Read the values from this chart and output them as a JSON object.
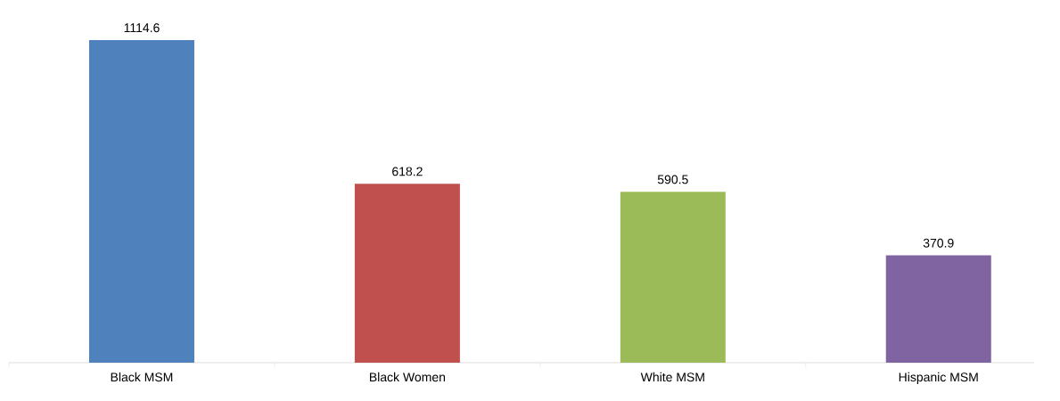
{
  "chart_data": {
    "type": "bar",
    "categories": [
      "Black MSM",
      "Black Women",
      "White MSM",
      "Hispanic MSM"
    ],
    "values": [
      1114.6,
      618.2,
      590.5,
      370.9
    ],
    "colors": [
      "#4f81bd",
      "#c0504d",
      "#9bbb59",
      "#8064a2"
    ],
    "data_labels": true
  }
}
